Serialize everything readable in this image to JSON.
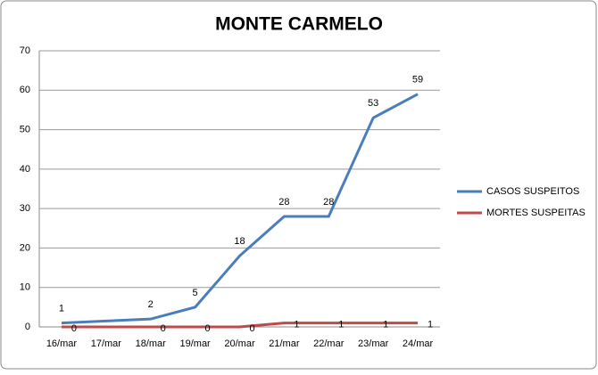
{
  "chart_data": {
    "type": "line",
    "title": "MONTE CARMELO",
    "categories": [
      "16/mar",
      "17/mar",
      "18/mar",
      "19/mar",
      "20/mar",
      "21/mar",
      "22/mar",
      "23/mar",
      "24/mar"
    ],
    "series": [
      {
        "name": "CASOS SUSPEITOS",
        "color": "#4a7ebb",
        "values": [
          1,
          1.5,
          2,
          5,
          18,
          28,
          28,
          53,
          59
        ],
        "value_labels": [
          "1",
          null,
          "2",
          "5",
          "18",
          "28",
          "28",
          "53",
          "59"
        ]
      },
      {
        "name": "MORTES SUSPEITAS",
        "color": "#be4b48",
        "values": [
          0,
          0,
          0,
          0,
          0,
          1,
          1,
          1,
          1
        ],
        "value_labels": [
          "0",
          null,
          "0",
          "0",
          "0",
          "1",
          "1",
          "1",
          "1"
        ]
      }
    ],
    "ylim": [
      0,
      70
    ],
    "yticks": [
      0,
      10,
      20,
      30,
      40,
      50,
      60,
      70
    ],
    "grid": true,
    "legend": "right"
  }
}
